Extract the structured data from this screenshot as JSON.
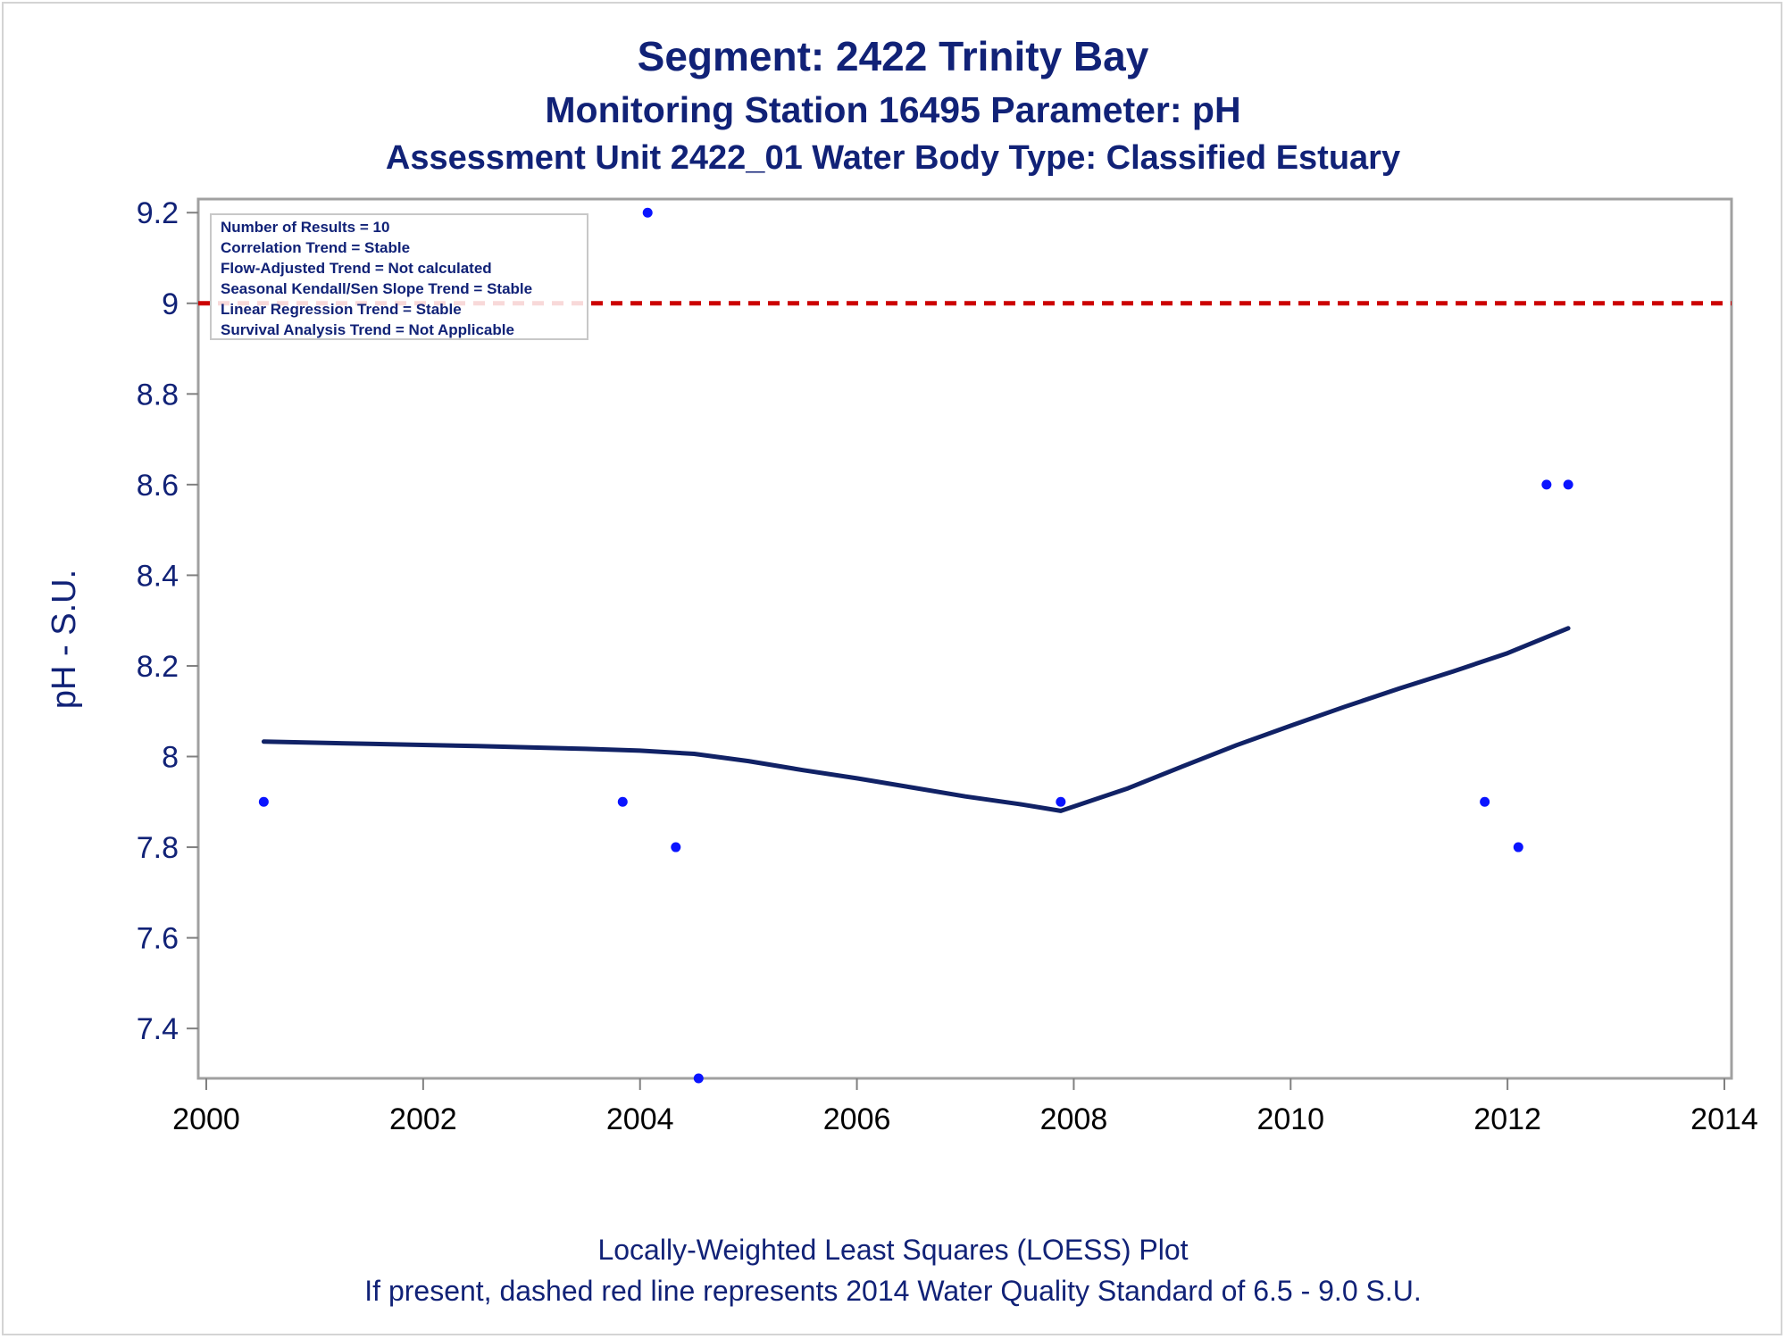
{
  "titles": {
    "line1": "Segment: 2422  Trinity Bay",
    "line2": "Monitoring Station 16495 Parameter: pH",
    "line3": "Assessment Unit 2422_01   Water Body Type: Classified Estuary"
  },
  "footnotes": {
    "line1": "Locally-Weighted Least Squares (LOESS) Plot",
    "line2": "If present, dashed red line represents 2014 Water Quality Standard of 6.5 - 9.0 S.U."
  },
  "inset_box": {
    "lines": [
      "Number of Results = 10",
      "Correlation Trend = Stable",
      "Flow-Adjusted Trend = Not calculated",
      "Seasonal Kendall/Sen Slope Trend = Stable",
      "Linear Regression Trend = Stable",
      "Survival Analysis Trend = Not Applicable"
    ]
  },
  "chart_data": {
    "type": "scatter",
    "xlabel": "",
    "ylabel": "pH - S.U.",
    "xlim": [
      2000,
      2014
    ],
    "ylim": [
      7.29,
      9.23
    ],
    "xticks": [
      2000,
      2002,
      2004,
      2006,
      2008,
      2010,
      2012,
      2014
    ],
    "yticks": [
      7.4,
      7.6,
      7.8,
      8.0,
      8.2,
      8.4,
      8.6,
      8.8,
      9.0,
      9.2
    ],
    "ytick_labels": [
      "7.4",
      "7.6",
      "7.8",
      "8",
      "8.2",
      "8.4",
      "8.6",
      "8.8",
      "9",
      "9.2"
    ],
    "grid": false,
    "points": {
      "x": [
        2000.53,
        2003.84,
        2004.07,
        2004.33,
        2004.54,
        2007.88,
        2011.79,
        2012.1,
        2012.36,
        2012.56
      ],
      "y": [
        7.9,
        7.9,
        9.2,
        7.8,
        7.29,
        7.9,
        7.9,
        7.8,
        8.6,
        8.6
      ],
      "color": "#0a14ff"
    },
    "loess": {
      "x": [
        2000.53,
        2001.5,
        2002.5,
        2003.5,
        2004.0,
        2004.5,
        2005.0,
        2005.5,
        2006.0,
        2006.5,
        2007.0,
        2007.5,
        2007.88,
        2008.5,
        2009.0,
        2009.5,
        2010.0,
        2010.5,
        2011.0,
        2011.5,
        2012.0,
        2012.56
      ],
      "y": [
        8.033,
        8.028,
        8.023,
        8.017,
        8.013,
        8.006,
        7.99,
        7.97,
        7.952,
        7.932,
        7.912,
        7.895,
        7.88,
        7.93,
        7.978,
        8.025,
        8.068,
        8.11,
        8.15,
        8.188,
        8.228,
        8.283
      ],
      "color": "#112266"
    },
    "reference_line": {
      "y": 9.0,
      "color": "#cc0000",
      "style": "dashed"
    }
  }
}
